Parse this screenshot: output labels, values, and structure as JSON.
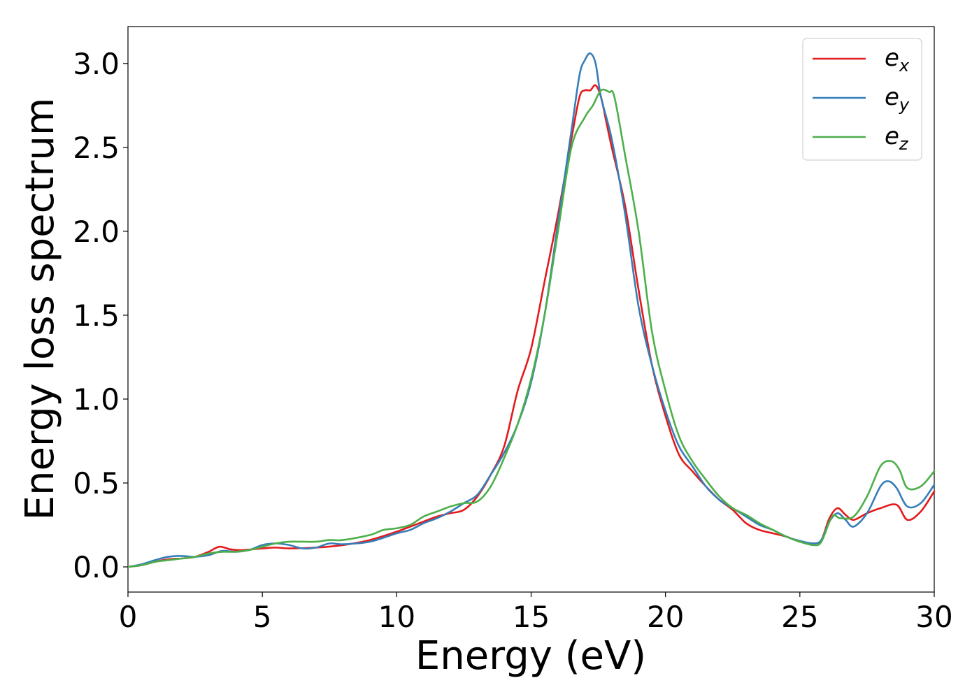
{
  "chart_data": {
    "type": "line",
    "title": "",
    "xlabel": "Energy (eV)",
    "ylabel": "Energy loss spectrum",
    "xlim": [
      0,
      30
    ],
    "ylim": [
      -0.15,
      3.22
    ],
    "xticks": [
      0,
      5,
      10,
      15,
      20,
      25,
      30
    ],
    "yticks": [
      0.0,
      0.5,
      1.0,
      1.5,
      2.0,
      2.5,
      3.0
    ],
    "xtick_labels": [
      "0",
      "5",
      "10",
      "15",
      "20",
      "25",
      "30"
    ],
    "ytick_labels": [
      "0.0",
      "0.5",
      "1.0",
      "1.5",
      "2.0",
      "2.5",
      "3.0"
    ],
    "grid": false,
    "legend_position": "top-right",
    "series": [
      {
        "name": "e_x",
        "legend_base": "e",
        "legend_sub": "x",
        "color": "#e41a1c",
        "points": [
          [
            0,
            0
          ],
          [
            0.5,
            0.01
          ],
          [
            1,
            0.03
          ],
          [
            1.5,
            0.045
          ],
          [
            2,
            0.05
          ],
          [
            2.5,
            0.06
          ],
          [
            3,
            0.09
          ],
          [
            3.4,
            0.12
          ],
          [
            3.8,
            0.105
          ],
          [
            4.2,
            0.1
          ],
          [
            5,
            0.11
          ],
          [
            5.5,
            0.115
          ],
          [
            6,
            0.11
          ],
          [
            7,
            0.115
          ],
          [
            8,
            0.13
          ],
          [
            9,
            0.16
          ],
          [
            10,
            0.21
          ],
          [
            10.5,
            0.24
          ],
          [
            11,
            0.27
          ],
          [
            11.5,
            0.3
          ],
          [
            12,
            0.32
          ],
          [
            12.5,
            0.34
          ],
          [
            13,
            0.42
          ],
          [
            13.5,
            0.55
          ],
          [
            14,
            0.72
          ],
          [
            14.5,
            1.05
          ],
          [
            15,
            1.3
          ],
          [
            15.5,
            1.7
          ],
          [
            16,
            2.1
          ],
          [
            16.5,
            2.55
          ],
          [
            16.8,
            2.8
          ],
          [
            17,
            2.84
          ],
          [
            17.2,
            2.84
          ],
          [
            17.4,
            2.87
          ],
          [
            17.6,
            2.8
          ],
          [
            17.8,
            2.65
          ],
          [
            18,
            2.5
          ],
          [
            18.5,
            2.15
          ],
          [
            19,
            1.65
          ],
          [
            19.5,
            1.2
          ],
          [
            20,
            0.9
          ],
          [
            20.5,
            0.67
          ],
          [
            21,
            0.57
          ],
          [
            21.5,
            0.48
          ],
          [
            22,
            0.4
          ],
          [
            22.5,
            0.34
          ],
          [
            23,
            0.26
          ],
          [
            23.5,
            0.22
          ],
          [
            24,
            0.2
          ],
          [
            24.5,
            0.18
          ],
          [
            25,
            0.15
          ],
          [
            25.5,
            0.14
          ],
          [
            25.8,
            0.16
          ],
          [
            26.1,
            0.29
          ],
          [
            26.4,
            0.35
          ],
          [
            26.7,
            0.31
          ],
          [
            27,
            0.28
          ],
          [
            27.5,
            0.32
          ],
          [
            28,
            0.35
          ],
          [
            28.6,
            0.37
          ],
          [
            29,
            0.28
          ],
          [
            29.5,
            0.33
          ],
          [
            30,
            0.45
          ]
        ]
      },
      {
        "name": "e_y",
        "legend_base": "e",
        "legend_sub": "y",
        "color": "#377eb8",
        "points": [
          [
            0,
            0
          ],
          [
            0.5,
            0.015
          ],
          [
            1,
            0.04
          ],
          [
            1.5,
            0.06
          ],
          [
            2,
            0.065
          ],
          [
            2.5,
            0.06
          ],
          [
            3,
            0.07
          ],
          [
            3.5,
            0.095
          ],
          [
            4,
            0.09
          ],
          [
            4.5,
            0.1
          ],
          [
            5,
            0.13
          ],
          [
            5.5,
            0.14
          ],
          [
            6,
            0.13
          ],
          [
            6.5,
            0.11
          ],
          [
            7,
            0.115
          ],
          [
            7.5,
            0.14
          ],
          [
            8,
            0.135
          ],
          [
            9,
            0.15
          ],
          [
            10,
            0.2
          ],
          [
            10.5,
            0.22
          ],
          [
            11,
            0.26
          ],
          [
            11.5,
            0.29
          ],
          [
            12,
            0.33
          ],
          [
            12.5,
            0.38
          ],
          [
            13,
            0.43
          ],
          [
            13.5,
            0.55
          ],
          [
            14,
            0.68
          ],
          [
            14.5,
            0.85
          ],
          [
            15,
            1.1
          ],
          [
            15.5,
            1.5
          ],
          [
            16,
            2.05
          ],
          [
            16.5,
            2.6
          ],
          [
            16.8,
            2.93
          ],
          [
            17,
            3.02
          ],
          [
            17.2,
            3.06
          ],
          [
            17.4,
            3.0
          ],
          [
            17.6,
            2.8
          ],
          [
            18,
            2.55
          ],
          [
            18.5,
            2.1
          ],
          [
            19,
            1.55
          ],
          [
            19.5,
            1.2
          ],
          [
            20,
            0.93
          ],
          [
            20.5,
            0.72
          ],
          [
            21,
            0.6
          ],
          [
            21.5,
            0.48
          ],
          [
            22,
            0.4
          ],
          [
            22.5,
            0.35
          ],
          [
            23,
            0.3
          ],
          [
            23.5,
            0.25
          ],
          [
            24,
            0.22
          ],
          [
            24.5,
            0.18
          ],
          [
            25,
            0.155
          ],
          [
            25.5,
            0.14
          ],
          [
            25.8,
            0.16
          ],
          [
            26.1,
            0.27
          ],
          [
            26.4,
            0.32
          ],
          [
            26.7,
            0.28
          ],
          [
            27,
            0.24
          ],
          [
            27.5,
            0.32
          ],
          [
            28,
            0.48
          ],
          [
            28.3,
            0.51
          ],
          [
            28.6,
            0.47
          ],
          [
            29,
            0.36
          ],
          [
            29.5,
            0.38
          ],
          [
            30,
            0.49
          ]
        ]
      },
      {
        "name": "e_z",
        "legend_base": "e",
        "legend_sub": "z",
        "color": "#4daf4a",
        "points": [
          [
            0,
            0
          ],
          [
            0.5,
            0.01
          ],
          [
            1,
            0.03
          ],
          [
            1.5,
            0.04
          ],
          [
            2,
            0.05
          ],
          [
            2.5,
            0.06
          ],
          [
            3,
            0.08
          ],
          [
            3.5,
            0.09
          ],
          [
            4,
            0.09
          ],
          [
            4.5,
            0.1
          ],
          [
            5,
            0.12
          ],
          [
            5.5,
            0.14
          ],
          [
            6,
            0.15
          ],
          [
            6.5,
            0.15
          ],
          [
            7,
            0.15
          ],
          [
            7.5,
            0.16
          ],
          [
            8,
            0.16
          ],
          [
            9,
            0.19
          ],
          [
            9.5,
            0.22
          ],
          [
            10,
            0.23
          ],
          [
            10.5,
            0.25
          ],
          [
            11,
            0.3
          ],
          [
            11.5,
            0.33
          ],
          [
            12,
            0.36
          ],
          [
            12.5,
            0.38
          ],
          [
            13,
            0.39
          ],
          [
            13.5,
            0.48
          ],
          [
            14,
            0.65
          ],
          [
            14.5,
            0.85
          ],
          [
            15,
            1.12
          ],
          [
            15.5,
            1.5
          ],
          [
            16,
            2.0
          ],
          [
            16.5,
            2.5
          ],
          [
            17,
            2.68
          ],
          [
            17.3,
            2.75
          ],
          [
            17.6,
            2.84
          ],
          [
            17.9,
            2.83
          ],
          [
            18.1,
            2.8
          ],
          [
            18.5,
            2.45
          ],
          [
            19,
            2.0
          ],
          [
            19.5,
            1.4
          ],
          [
            20,
            1.05
          ],
          [
            20.5,
            0.78
          ],
          [
            21,
            0.63
          ],
          [
            21.5,
            0.52
          ],
          [
            22,
            0.42
          ],
          [
            22.5,
            0.35
          ],
          [
            23,
            0.31
          ],
          [
            23.5,
            0.26
          ],
          [
            24,
            0.22
          ],
          [
            24.5,
            0.18
          ],
          [
            25,
            0.15
          ],
          [
            25.5,
            0.13
          ],
          [
            25.8,
            0.15
          ],
          [
            26.2,
            0.3
          ],
          [
            26.5,
            0.29
          ],
          [
            27,
            0.3
          ],
          [
            27.5,
            0.42
          ],
          [
            28,
            0.6
          ],
          [
            28.4,
            0.63
          ],
          [
            28.7,
            0.58
          ],
          [
            29,
            0.47
          ],
          [
            29.5,
            0.48
          ],
          [
            30,
            0.57
          ]
        ]
      }
    ]
  }
}
